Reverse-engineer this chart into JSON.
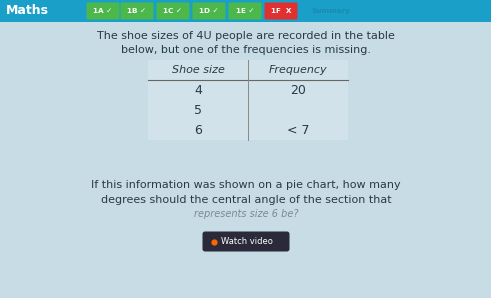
{
  "bg_color": "#c8dce6",
  "header_bg": "#1aa0c8",
  "header_text": "Maths",
  "header_text_color": "#ffffff",
  "tab_labels": [
    "1A",
    "1B",
    "1C",
    "1D",
    "1E",
    "1F",
    "Summary"
  ],
  "tab_checks": [
    true,
    true,
    true,
    true,
    true,
    false,
    false
  ],
  "body_text_line1": "The shoe sizes of 4U people are recorded in the table",
  "body_text_line2": "below, but one of the frequencies is missing.",
  "table_headers": [
    "Shoe size",
    "Frequency"
  ],
  "table_rows": [
    [
      "4",
      "20"
    ],
    [
      "5",
      ""
    ],
    [
      "6",
      "< 7"
    ]
  ],
  "question_line1": "If this information was shown on a pie chart, how many",
  "question_line2": "degrees should the central angle of the section that",
  "question_line3": "represents size 6 be?",
  "watch_video_text": "Watch video",
  "text_color_dark": "#2a3a45",
  "tab_green_bg": "#4cb84c",
  "tab_red_bg": "#e03030",
  "tab_summary_color": "#1a8ab0",
  "watch_video_bg": "#2a2a3a",
  "watch_video_dot": "#ff6600"
}
